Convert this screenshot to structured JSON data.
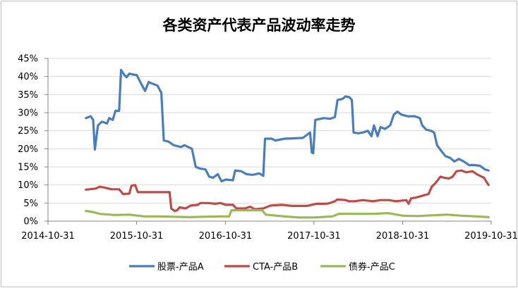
{
  "chart_data": {
    "type": "line",
    "title": "各类资产代表产品波动率走势",
    "xlabel": "",
    "ylabel": "",
    "x_ticks": [
      "2014-10-31",
      "2015-10-31",
      "2016-10-31",
      "2017-10-31",
      "2018-10-31",
      "2019-10-31"
    ],
    "y_ticks": [
      "0%",
      "5%",
      "10%",
      "15%",
      "20%",
      "25%",
      "30%",
      "35%",
      "40%",
      "45%"
    ],
    "ylim": [
      0,
      45
    ],
    "xlim": [
      "2014-10-31",
      "2019-10-31"
    ],
    "grid": "horizontal",
    "legend_position": "bottom",
    "series": [
      {
        "name": "股票-产品A",
        "color": "#4a7ebb",
        "points": [
          [
            "2015-04-05",
            28.5
          ],
          [
            "2015-04-25",
            29.0
          ],
          [
            "2015-05-05",
            28.0
          ],
          [
            "2015-05-12",
            19.8
          ],
          [
            "2015-05-25",
            26.5
          ],
          [
            "2015-06-10",
            27.5
          ],
          [
            "2015-07-01",
            27.0
          ],
          [
            "2015-07-10",
            28.5
          ],
          [
            "2015-07-25",
            28.0
          ],
          [
            "2015-08-05",
            30.5
          ],
          [
            "2015-08-20",
            30.5
          ],
          [
            "2015-08-28",
            41.8
          ],
          [
            "2015-09-10",
            40.5
          ],
          [
            "2015-09-20",
            39.8
          ],
          [
            "2015-10-01",
            40.8
          ],
          [
            "2015-10-20",
            40.5
          ],
          [
            "2015-11-01",
            40.4
          ],
          [
            "2015-11-15",
            38.5
          ],
          [
            "2015-12-05",
            36.0
          ],
          [
            "2015-12-20",
            38.5
          ],
          [
            "2016-01-05",
            38.0
          ],
          [
            "2016-01-25",
            37.5
          ],
          [
            "2016-02-10",
            35.5
          ],
          [
            "2016-02-20",
            22.3
          ],
          [
            "2016-03-10",
            22.0
          ],
          [
            "2016-04-01",
            21.0
          ],
          [
            "2016-05-01",
            20.5
          ],
          [
            "2016-05-15",
            21.0
          ],
          [
            "2016-06-15",
            20.0
          ],
          [
            "2016-07-01",
            15.0
          ],
          [
            "2016-07-20",
            14.5
          ],
          [
            "2016-08-10",
            14.3
          ],
          [
            "2016-08-25",
            12.3
          ],
          [
            "2016-09-10",
            12.0
          ],
          [
            "2016-09-30",
            13.0
          ],
          [
            "2016-10-15",
            11.0
          ],
          [
            "2016-11-01",
            11.5
          ],
          [
            "2016-12-01",
            11.3
          ],
          [
            "2016-12-10",
            14.0
          ],
          [
            "2017-01-05",
            13.8
          ],
          [
            "2017-01-25",
            13.0
          ],
          [
            "2017-02-20",
            12.8
          ],
          [
            "2017-03-20",
            13.2
          ],
          [
            "2017-04-05",
            12.5
          ],
          [
            "2017-04-12",
            22.8
          ],
          [
            "2017-05-10",
            22.8
          ],
          [
            "2017-05-25",
            22.3
          ],
          [
            "2017-07-01",
            22.8
          ],
          [
            "2017-09-15",
            23.0
          ],
          [
            "2017-10-15",
            24.5
          ],
          [
            "2017-10-22",
            19.0
          ],
          [
            "2017-10-28",
            18.8
          ],
          [
            "2017-11-05",
            28.0
          ],
          [
            "2017-12-10",
            28.5
          ],
          [
            "2018-01-05",
            28.3
          ],
          [
            "2018-01-25",
            28.8
          ],
          [
            "2018-02-05",
            33.5
          ],
          [
            "2018-02-25",
            33.8
          ],
          [
            "2018-03-10",
            34.5
          ],
          [
            "2018-03-25",
            34.3
          ],
          [
            "2018-04-05",
            33.5
          ],
          [
            "2018-04-12",
            24.5
          ],
          [
            "2018-05-01",
            24.3
          ],
          [
            "2018-05-20",
            24.5
          ],
          [
            "2018-06-10",
            25.0
          ],
          [
            "2018-06-25",
            23.5
          ],
          [
            "2018-07-05",
            26.5
          ],
          [
            "2018-07-20",
            23.5
          ],
          [
            "2018-08-01",
            26.0
          ],
          [
            "2018-08-20",
            25.5
          ],
          [
            "2018-09-10",
            26.5
          ],
          [
            "2018-09-25",
            29.5
          ],
          [
            "2018-10-10",
            30.3
          ],
          [
            "2018-10-25",
            29.5
          ],
          [
            "2018-11-20",
            29.0
          ],
          [
            "2018-12-20",
            29.0
          ],
          [
            "2019-01-10",
            28.5
          ],
          [
            "2019-01-20",
            26.5
          ],
          [
            "2019-02-05",
            25.3
          ],
          [
            "2019-02-25",
            25.0
          ],
          [
            "2019-03-10",
            24.5
          ],
          [
            "2019-03-22",
            21.0
          ],
          [
            "2019-04-10",
            19.3
          ],
          [
            "2019-04-25",
            18.0
          ],
          [
            "2019-05-15",
            17.5
          ],
          [
            "2019-06-01",
            16.5
          ],
          [
            "2019-06-20",
            17.2
          ],
          [
            "2019-07-10",
            16.5
          ],
          [
            "2019-08-01",
            15.5
          ],
          [
            "2019-08-25",
            15.5
          ],
          [
            "2019-09-15",
            15.3
          ],
          [
            "2019-10-05",
            14.3
          ],
          [
            "2019-10-20",
            14.0
          ]
        ]
      },
      {
        "name": "CTA-产品B",
        "color": "#be4b48",
        "points": [
          [
            "2015-04-05",
            8.7
          ],
          [
            "2015-04-20",
            8.8
          ],
          [
            "2015-05-15",
            9.0
          ],
          [
            "2015-06-01",
            9.5
          ],
          [
            "2015-06-20",
            9.3
          ],
          [
            "2015-07-20",
            8.8
          ],
          [
            "2015-08-20",
            8.8
          ],
          [
            "2015-08-30",
            8.0
          ],
          [
            "2015-09-05",
            7.5
          ],
          [
            "2015-10-01",
            7.6
          ],
          [
            "2015-10-10",
            9.8
          ],
          [
            "2015-10-25",
            10.0
          ],
          [
            "2015-11-05",
            8.0
          ],
          [
            "2015-12-15",
            8.0
          ],
          [
            "2016-02-01",
            8.0
          ],
          [
            "2016-03-15",
            8.0
          ],
          [
            "2016-03-22",
            3.5
          ],
          [
            "2016-04-05",
            2.8
          ],
          [
            "2016-04-15",
            3.0
          ],
          [
            "2016-04-25",
            3.8
          ],
          [
            "2016-05-20",
            3.5
          ],
          [
            "2016-06-10",
            4.3
          ],
          [
            "2016-07-10",
            4.5
          ],
          [
            "2016-07-20",
            5.0
          ],
          [
            "2016-08-20",
            5.0
          ],
          [
            "2016-09-20",
            4.8
          ],
          [
            "2016-10-10",
            5.0
          ],
          [
            "2016-11-01",
            4.5
          ],
          [
            "2016-12-01",
            4.5
          ],
          [
            "2016-12-15",
            3.5
          ],
          [
            "2017-01-20",
            3.5
          ],
          [
            "2017-02-10",
            4.0
          ],
          [
            "2017-03-01",
            3.3
          ],
          [
            "2017-04-05",
            3.5
          ],
          [
            "2017-05-05",
            4.3
          ],
          [
            "2017-06-20",
            4.5
          ],
          [
            "2017-08-01",
            4.2
          ],
          [
            "2017-10-01",
            4.2
          ],
          [
            "2017-11-10",
            4.8
          ],
          [
            "2017-12-20",
            4.8
          ],
          [
            "2018-01-05",
            5.0
          ],
          [
            "2018-01-25",
            5.5
          ],
          [
            "2018-02-05",
            6.0
          ],
          [
            "2018-03-10",
            5.8
          ],
          [
            "2018-03-25",
            5.5
          ],
          [
            "2018-04-15",
            5.5
          ],
          [
            "2018-05-20",
            5.8
          ],
          [
            "2018-07-01",
            5.5
          ],
          [
            "2018-08-01",
            5.8
          ],
          [
            "2018-09-05",
            5.8
          ],
          [
            "2018-10-05",
            5.5
          ],
          [
            "2018-11-15",
            5.8
          ],
          [
            "2018-11-25",
            4.8
          ],
          [
            "2018-12-05",
            6.3
          ],
          [
            "2018-12-25",
            6.5
          ],
          [
            "2019-01-20",
            7.0
          ],
          [
            "2019-02-15",
            7.5
          ],
          [
            "2019-02-28",
            9.5
          ],
          [
            "2019-03-15",
            10.5
          ],
          [
            "2019-04-05",
            12.3
          ],
          [
            "2019-04-20",
            12.0
          ],
          [
            "2019-05-10",
            11.8
          ],
          [
            "2019-05-25",
            12.3
          ],
          [
            "2019-06-10",
            13.8
          ],
          [
            "2019-07-01",
            14.0
          ],
          [
            "2019-07-20",
            13.5
          ],
          [
            "2019-08-15",
            13.8
          ],
          [
            "2019-09-01",
            13.0
          ],
          [
            "2019-10-01",
            12.0
          ],
          [
            "2019-10-20",
            10.0
          ]
        ]
      },
      {
        "name": "债券-产品C",
        "color": "#98b954",
        "points": [
          [
            "2015-04-05",
            2.8
          ],
          [
            "2015-05-05",
            2.5
          ],
          [
            "2015-06-01",
            2.0
          ],
          [
            "2015-08-01",
            1.7
          ],
          [
            "2015-10-01",
            1.8
          ],
          [
            "2015-12-01",
            1.3
          ],
          [
            "2016-02-01",
            1.3
          ],
          [
            "2016-04-01",
            1.2
          ],
          [
            "2016-06-01",
            1.1
          ],
          [
            "2016-08-01",
            1.2
          ],
          [
            "2016-10-15",
            1.3
          ],
          [
            "2016-11-15",
            1.3
          ],
          [
            "2016-11-25",
            3.0
          ],
          [
            "2017-03-01",
            3.0
          ],
          [
            "2017-04-01",
            3.0
          ],
          [
            "2017-04-15",
            1.8
          ],
          [
            "2017-07-01",
            1.3
          ],
          [
            "2017-09-01",
            1.0
          ],
          [
            "2017-11-01",
            1.0
          ],
          [
            "2018-01-15",
            1.3
          ],
          [
            "2018-02-10",
            2.0
          ],
          [
            "2018-05-01",
            2.0
          ],
          [
            "2018-07-01",
            2.0
          ],
          [
            "2018-09-01",
            2.2
          ],
          [
            "2018-11-01",
            1.5
          ],
          [
            "2019-01-01",
            1.4
          ],
          [
            "2019-03-01",
            1.6
          ],
          [
            "2019-05-01",
            1.8
          ],
          [
            "2019-07-01",
            1.5
          ],
          [
            "2019-09-01",
            1.3
          ],
          [
            "2019-10-20",
            1.1
          ]
        ]
      }
    ]
  }
}
